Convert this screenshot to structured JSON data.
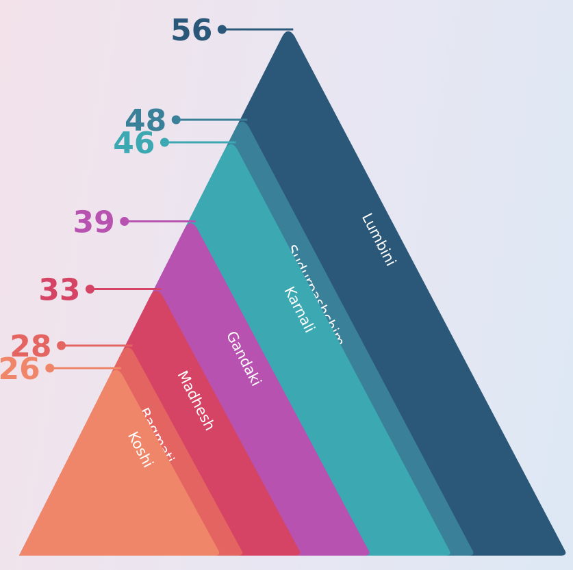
{
  "chart_data": {
    "type": "pyramid",
    "title": "",
    "layers": [
      {
        "name": "Lumbini",
        "value": 56,
        "color": "#2b5878"
      },
      {
        "name": "Sudurpashchim",
        "value": 48,
        "color": "#3a8099"
      },
      {
        "name": "Karnali",
        "value": 46,
        "color": "#3ba8b2"
      },
      {
        "name": "Gandaki",
        "value": 39,
        "color": "#b752b1"
      },
      {
        "name": "Madhesh",
        "value": 33,
        "color": "#d54464"
      },
      {
        "name": "Bagmati",
        "value": 28,
        "color": "#e46462"
      },
      {
        "name": "Koshi",
        "value": 26,
        "color": "#ef8569"
      }
    ]
  }
}
